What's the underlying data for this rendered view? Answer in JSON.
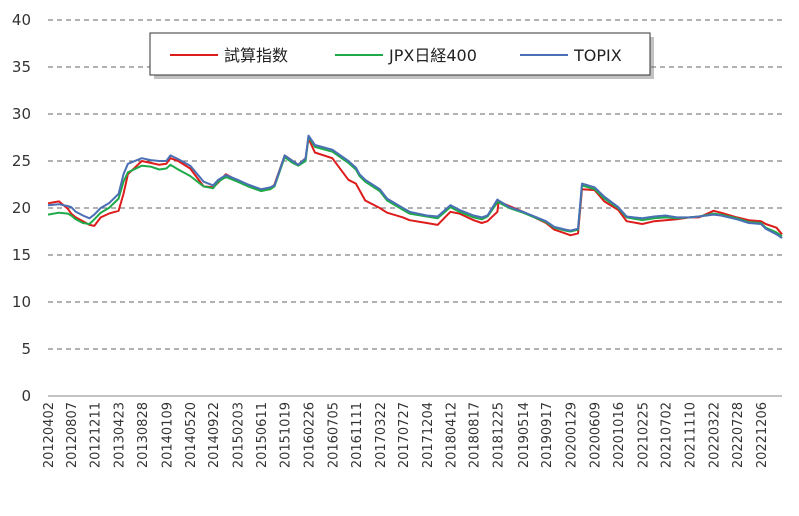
{
  "chart_data": {
    "type": "line",
    "ylim": [
      0,
      40
    ],
    "yticks": [
      0,
      5,
      10,
      15,
      20,
      25,
      30,
      35,
      40
    ],
    "grid": "horizontal dashed",
    "legend_position": "top",
    "x_tick_labels": [
      "20120402",
      "20120807",
      "20121211",
      "20130423",
      "20130828",
      "20140109",
      "20140520",
      "20140922",
      "20150203",
      "20150611",
      "20151019",
      "20160226",
      "20160705",
      "20161111",
      "20170322",
      "20170727",
      "20171204",
      "20180412",
      "20180817",
      "20181225",
      "20190514",
      "20190917",
      "20200129",
      "20200609",
      "20201016",
      "20210225",
      "20210702",
      "20211110",
      "20220322",
      "20220728",
      "20221206"
    ],
    "series": [
      {
        "name": "試算指数",
        "color": "#dd1c1c",
        "x": [
          "20120402",
          "20120601",
          "20120720",
          "20120807",
          "20120901",
          "20121010",
          "20121115",
          "20121211",
          "20130115",
          "20130301",
          "20130423",
          "20130520",
          "20130613",
          "20130828",
          "20131015",
          "20131201",
          "20140109",
          "20140201",
          "20140315",
          "20140520",
          "20140801",
          "20140922",
          "20141020",
          "20141201",
          "20150203",
          "20150401",
          "20150611",
          "20150801",
          "20150824",
          "20151019",
          "20151201",
          "20160101",
          "20160210",
          "20160226",
          "20160401",
          "20160705",
          "20161001",
          "20161111",
          "20161201",
          "20170101",
          "20170322",
          "20170501",
          "20170727",
          "20170901",
          "20171204",
          "20180201",
          "20180412",
          "20180601",
          "20180817",
          "20181001",
          "20181101",
          "20181225",
          "20190101",
          "20190301",
          "20190514",
          "20190917",
          "20191101",
          "20200101",
          "20200129",
          "20200310",
          "20200401",
          "20200609",
          "20200801",
          "20201016",
          "20201201",
          "20210225",
          "20210501",
          "20210702",
          "20210901",
          "20211110",
          "20220101",
          "20220322",
          "20220501",
          "20220728",
          "20221001",
          "20221206",
          "20230101",
          "20230301",
          "20230331"
        ],
        "values": [
          20.5,
          20.7,
          19.9,
          19.4,
          19.0,
          18.6,
          18.2,
          18.1,
          19.0,
          19.4,
          19.7,
          21.5,
          23.6,
          25.0,
          24.8,
          24.6,
          24.7,
          25.3,
          25.0,
          24.2,
          22.3,
          22.2,
          22.7,
          23.6,
          22.9,
          22.4,
          21.9,
          22.0,
          22.5,
          25.6,
          25.0,
          24.6,
          25.3,
          27.4,
          25.9,
          25.3,
          23.0,
          22.6,
          21.9,
          20.8,
          20.0,
          19.5,
          19.0,
          18.7,
          18.4,
          18.2,
          19.6,
          19.4,
          18.7,
          18.4,
          18.6,
          19.6,
          20.7,
          20.2,
          19.6,
          18.4,
          17.7,
          17.3,
          17.1,
          17.3,
          22.0,
          21.9,
          20.7,
          19.8,
          18.6,
          18.3,
          18.6,
          18.7,
          18.8,
          19.0,
          19.0,
          19.7,
          19.5,
          19.0,
          18.7,
          18.6,
          18.3,
          17.9,
          17.2
        ]
      },
      {
        "name": "JPX日経400",
        "color": "#1faa4a",
        "x": [
          "20120402",
          "20120601",
          "20120720",
          "20120807",
          "20120901",
          "20121010",
          "20121115",
          "20121211",
          "20130115",
          "20130301",
          "20130423",
          "20130520",
          "20130613",
          "20130828",
          "20131015",
          "20131201",
          "20140109",
          "20140201",
          "20140315",
          "20140520",
          "20140801",
          "20140922",
          "20141020",
          "20141201",
          "20150203",
          "20150401",
          "20150611",
          "20150801",
          "20150824",
          "20151019",
          "20151201",
          "20160101",
          "20160210",
          "20160226",
          "20160401",
          "20160705",
          "20161001",
          "20161111",
          "20161201",
          "20170101",
          "20170322",
          "20170501",
          "20170727",
          "20170901",
          "20171204",
          "20180201",
          "20180412",
          "20180601",
          "20180817",
          "20181001",
          "20181101",
          "20181225",
          "20190101",
          "20190301",
          "20190514",
          "20190917",
          "20191101",
          "20200101",
          "20200129",
          "20200310",
          "20200401",
          "20200609",
          "20200801",
          "20201016",
          "20201201",
          "20210225",
          "20210501",
          "20210702",
          "20210901",
          "20211110",
          "20220101",
          "20220322",
          "20220501",
          "20220728",
          "20221001",
          "20221206",
          "20230101",
          "20230301",
          "20230331"
        ],
        "values": [
          19.3,
          19.5,
          19.4,
          19.2,
          18.8,
          18.4,
          18.3,
          18.8,
          19.5,
          20.0,
          21.0,
          22.8,
          23.8,
          24.5,
          24.4,
          24.1,
          24.2,
          24.6,
          24.1,
          23.4,
          22.3,
          22.1,
          22.8,
          23.3,
          22.8,
          22.3,
          21.8,
          22.0,
          22.3,
          25.4,
          24.8,
          24.5,
          25.0,
          27.6,
          26.5,
          26.0,
          24.8,
          24.1,
          23.4,
          22.8,
          21.8,
          20.8,
          19.8,
          19.4,
          19.1,
          18.9,
          20.1,
          19.6,
          19.0,
          18.8,
          19.1,
          20.6,
          20.6,
          20.0,
          19.5,
          18.5,
          17.9,
          17.6,
          17.5,
          17.7,
          22.4,
          22.0,
          21.0,
          20.0,
          19.0,
          18.7,
          18.9,
          19.0,
          18.9,
          19.0,
          19.1,
          19.4,
          19.3,
          18.9,
          18.5,
          18.4,
          17.9,
          17.4,
          17.0
        ]
      },
      {
        "name": "TOPIX",
        "color": "#4a6fb5",
        "x": [
          "20120402",
          "20120601",
          "20120720",
          "20120807",
          "20120901",
          "20121010",
          "20121115",
          "20121211",
          "20130115",
          "20130301",
          "20130423",
          "20130520",
          "20130613",
          "20130828",
          "20131015",
          "20131201",
          "20140109",
          "20140201",
          "20140315",
          "20140520",
          "20140801",
          "20140922",
          "20141020",
          "20141201",
          "20150203",
          "20150401",
          "20150611",
          "20150801",
          "20150824",
          "20151019",
          "20151201",
          "20160101",
          "20160210",
          "20160226",
          "20160401",
          "20160705",
          "20161001",
          "20161111",
          "20161201",
          "20170101",
          "20170322",
          "20170501",
          "20170727",
          "20170901",
          "20171204",
          "20180201",
          "20180412",
          "20180601",
          "20180817",
          "20181001",
          "20181101",
          "20181225",
          "20190101",
          "20190301",
          "20190514",
          "20190917",
          "20191101",
          "20200101",
          "20200129",
          "20200310",
          "20200401",
          "20200609",
          "20200801",
          "20201016",
          "20201201",
          "20210225",
          "20210501",
          "20210702",
          "20210901",
          "20211110",
          "20220101",
          "20220322",
          "20220501",
          "20220728",
          "20221001",
          "20221206",
          "20230101",
          "20230301",
          "20230331"
        ],
        "values": [
          20.3,
          20.4,
          20.2,
          20.1,
          19.6,
          19.2,
          18.9,
          19.3,
          20.0,
          20.5,
          21.5,
          23.6,
          24.7,
          25.3,
          25.1,
          25.0,
          25.0,
          25.6,
          25.2,
          24.5,
          22.8,
          22.4,
          23.0,
          23.5,
          23.0,
          22.5,
          22.0,
          22.2,
          22.4,
          25.6,
          25.0,
          24.6,
          25.3,
          27.7,
          26.7,
          26.2,
          25.0,
          24.3,
          23.6,
          23.0,
          22.0,
          21.0,
          20.0,
          19.6,
          19.2,
          19.1,
          20.3,
          19.8,
          19.2,
          19.0,
          19.2,
          20.9,
          20.8,
          20.1,
          19.6,
          18.6,
          18.0,
          17.7,
          17.6,
          17.8,
          22.6,
          22.2,
          21.2,
          20.1,
          19.1,
          18.9,
          19.1,
          19.2,
          19.0,
          19.0,
          19.1,
          19.3,
          19.2,
          18.8,
          18.4,
          18.3,
          17.8,
          17.2,
          16.8
        ]
      }
    ]
  }
}
